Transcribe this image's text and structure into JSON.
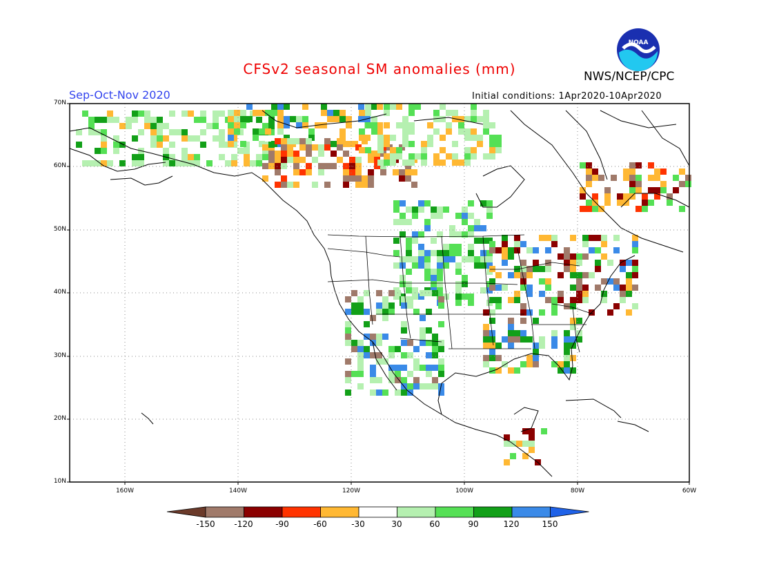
{
  "title": "CFSv2 seasonal SM anomalies (mm)",
  "period": "Sep-Oct-Nov 2020",
  "initial_conditions": "Initial conditions: 1Apr2020-10Apr2020",
  "agency": "NWS/NCEP/CPC",
  "logo": {
    "icon": "noaa-logo",
    "text": "NOAA"
  },
  "lat_labels": [
    "70N",
    "60N",
    "50N",
    "40N",
    "30N",
    "20N",
    "10N"
  ],
  "lon_labels": [
    "160W",
    "140W",
    "120W",
    "100W",
    "80W",
    "60W"
  ],
  "colorbar": {
    "labels": [
      "-150",
      "-120",
      "-90",
      "-60",
      "-30",
      "30",
      "60",
      "90",
      "120",
      "150"
    ],
    "colors": [
      "#6b3a2a",
      "#a07a6a",
      "#8b0000",
      "#ff3300",
      "#ffb833",
      "#ffffff",
      "#b5f0b0",
      "#55e055",
      "#12a018",
      "#3a8ae8",
      "#1f62e8"
    ]
  }
}
